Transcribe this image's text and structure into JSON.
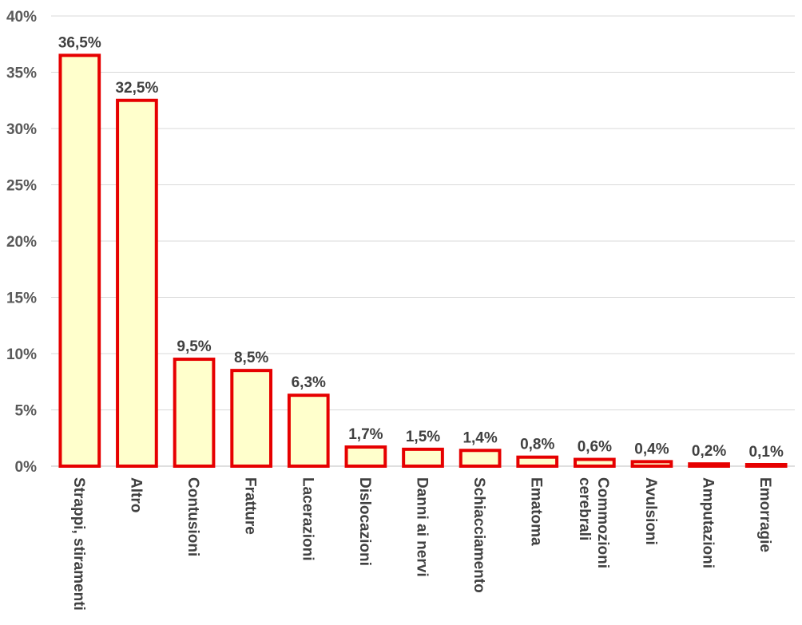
{
  "chart_data": {
    "type": "bar",
    "categories": [
      [
        "Strappi, stiramenti"
      ],
      [
        "Altro"
      ],
      [
        "Contusioni"
      ],
      [
        "Fratture"
      ],
      [
        "Lacerazioni"
      ],
      [
        "Dislocazioni"
      ],
      [
        "Danni ai nervi"
      ],
      [
        "Schiacciamento"
      ],
      [
        "Ematoma"
      ],
      [
        "Commozioni",
        "cerebrali"
      ],
      [
        "Avulsioni"
      ],
      [
        "Amputazioni"
      ],
      [
        "Emorragie"
      ]
    ],
    "values": [
      36.5,
      32.5,
      9.5,
      8.5,
      6.3,
      1.7,
      1.5,
      1.4,
      0.8,
      0.6,
      0.4,
      0.2,
      0.1
    ],
    "data_labels": [
      "36,5%",
      "32,5%",
      "9,5%",
      "8,5%",
      "6,3%",
      "1,7%",
      "1,5%",
      "1,4%",
      "0,8%",
      "0,6%",
      "0,4%",
      "0,2%",
      "0,1%"
    ],
    "y_ticks": [
      0,
      5,
      10,
      15,
      20,
      25,
      30,
      35,
      40
    ],
    "y_tick_labels": [
      "0%",
      "5%",
      "10%",
      "15%",
      "20%",
      "25%",
      "30%",
      "35%",
      "40%"
    ],
    "ylim": [
      0,
      40
    ],
    "title": "",
    "xlabel": "",
    "ylabel": "",
    "grid": true,
    "legend": "none",
    "colors": {
      "bar_fill": "#ffffcc",
      "bar_stroke": "#e60000",
      "grid": "#d9d9d9",
      "axis": "#bfbfbf"
    }
  }
}
